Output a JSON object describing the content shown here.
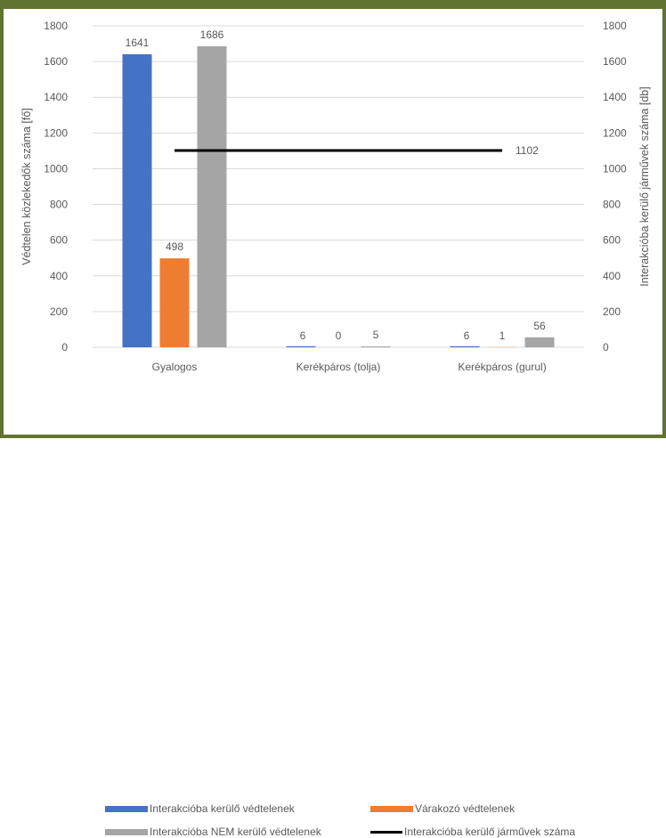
{
  "chart_data": {
    "type": "bar",
    "categories": [
      "Gyalogos",
      "Kerékpáros (tolja)",
      "Kerékpáros (gurul)"
    ],
    "series": [
      {
        "name": "Interakcióba kerülő védtelenek",
        "values": [
          1641,
          6,
          6
        ],
        "labels": [
          "1641",
          "",
          ""
        ],
        "color": "#4472c4",
        "axis": "left"
      },
      {
        "name": "Várakozó védtelenek",
        "values": [
          498,
          0,
          1
        ],
        "labels": [
          "498",
          "0",
          "1"
        ],
        "color": "#ed7d31",
        "axis": "left"
      },
      {
        "name": "Interakcióba NEM kerülő védtelenek",
        "values": [
          1686,
          5,
          56
        ],
        "labels": [
          "1686",
          "5",
          "56"
        ],
        "color": "#a5a5a5",
        "axis": "left"
      }
    ],
    "line_series": {
      "name": "Interakcióba kerülő járművek száma",
      "value": 1102,
      "label": "1102",
      "color": "#000000",
      "axis": "right"
    },
    "extra_labels": [
      "6",
      "6"
    ],
    "ylabel": "Védtelen közlekedők száma [fő]",
    "y2label": "Interakcióba kerülő járművek száma [db]",
    "ylim": [
      0,
      1800
    ],
    "y2lim": [
      0,
      1800
    ],
    "yticks": [
      "0",
      "200",
      "400",
      "600",
      "800",
      "1000",
      "1200",
      "1400",
      "1600",
      "1800"
    ],
    "y2ticks": [
      "0",
      "200",
      "400",
      "600",
      "800",
      "1000",
      "1200",
      "1400",
      "1600",
      "1800"
    ],
    "grid": true,
    "legend_position": "bottom"
  }
}
